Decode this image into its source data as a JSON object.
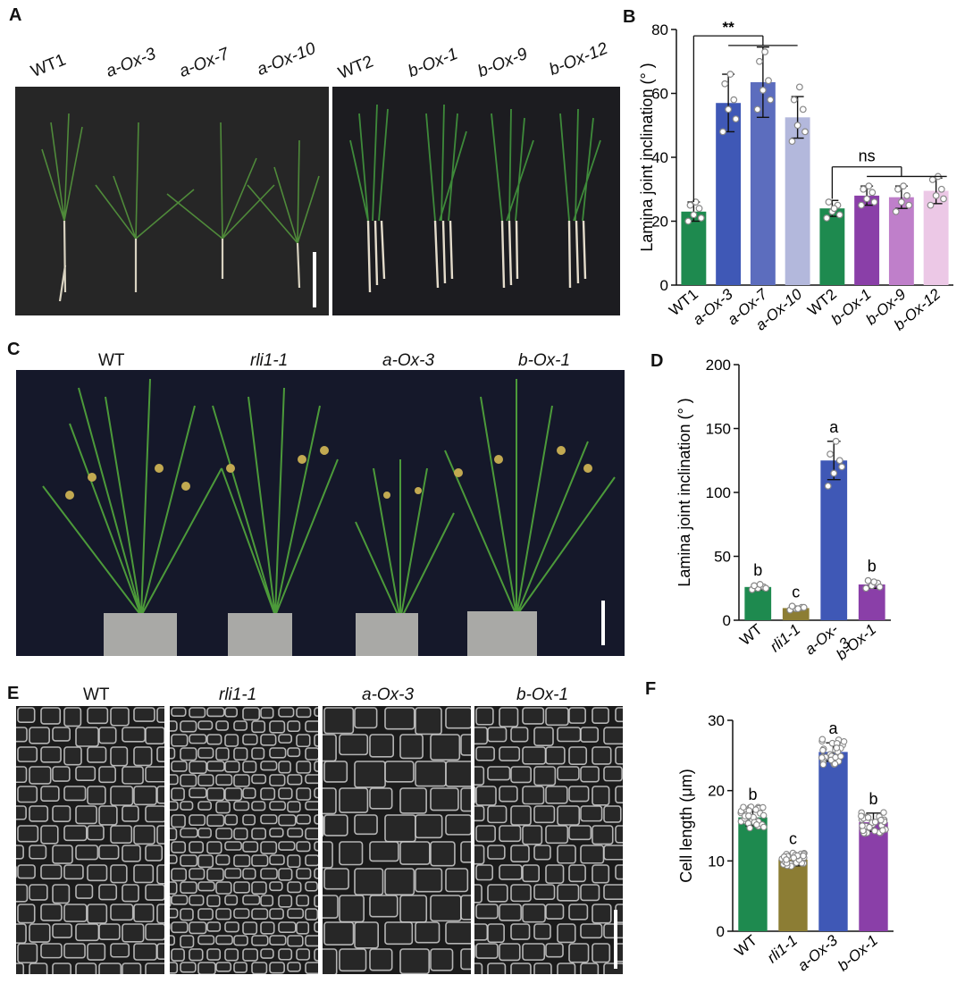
{
  "panels": [
    "A",
    "B",
    "C",
    "D",
    "E",
    "F"
  ],
  "panelA": {
    "labels": [
      "WT1",
      "a-Ox-3",
      "a-Ox-7",
      "a-Ox-10",
      "WT2",
      "b-Ox-1",
      "b-Ox-9",
      "b-Ox-12"
    ]
  },
  "panelC": {
    "labels": [
      "WT",
      "rli1-1",
      "a-Ox-3",
      "b-Ox-1"
    ]
  },
  "panelE": {
    "labels": [
      "WT",
      "rli1-1",
      "a-Ox-3",
      "b-Ox-1"
    ]
  },
  "chart_data": [
    {
      "id": "B",
      "type": "bar",
      "ylabel": "Lamina joint inclination (°  )",
      "ylim": [
        0,
        80
      ],
      "yticks": [
        0,
        20,
        40,
        60,
        80
      ],
      "categories": [
        "WT1",
        "a-Ox-3",
        "a-Ox-7",
        "a-Ox-10",
        "WT2",
        "b-Ox-1",
        "b-Ox-9",
        "b-Ox-12"
      ],
      "values": [
        23,
        57,
        63.5,
        52.5,
        24,
        28,
        27.5,
        29.5
      ],
      "errors": [
        3,
        9,
        11,
        6.5,
        2.5,
        3,
        3.5,
        4
      ],
      "colors": [
        "#1e8a4f",
        "#3f58b6",
        "#5c6dbe",
        "#b3b8dc",
        "#1e8a4f",
        "#8a3fa8",
        "#bf7fca",
        "#ecc8e6"
      ],
      "points": [
        [
          20,
          22,
          24,
          25,
          26,
          21
        ],
        [
          48,
          55,
          58,
          63,
          66,
          52
        ],
        [
          55,
          61,
          64,
          70,
          73,
          58
        ],
        [
          45,
          50,
          55,
          58,
          62,
          48
        ],
        [
          21,
          23,
          25,
          26,
          24,
          22
        ],
        [
          25,
          27,
          29,
          30,
          31,
          26
        ],
        [
          23,
          26,
          28,
          30,
          31,
          25
        ],
        [
          25,
          28,
          30,
          33,
          34,
          27
        ]
      ],
      "annotations": [
        "**",
        "ns"
      ]
    },
    {
      "id": "D",
      "type": "bar",
      "ylabel": "Lamina joint inclination (°  )",
      "ylim": [
        0,
        200
      ],
      "yticks": [
        0,
        50,
        100,
        150,
        200
      ],
      "categories": [
        "WT",
        "rli1-1",
        "a-Ox-3",
        "b-Ox-1"
      ],
      "tick_labels": [
        "WT",
        "rli1-1",
        "a-Ox-\n3",
        "b-Ox-1"
      ],
      "values": [
        26,
        9.5,
        125,
        28
      ],
      "errors": [
        2,
        1.5,
        15,
        3
      ],
      "colors": [
        "#1e8a4f",
        "#8c7d34",
        "#3f58b6",
        "#8a3fa8"
      ],
      "points": [
        [
          24,
          25,
          26,
          27,
          28,
          25
        ],
        [
          8,
          9,
          10,
          11,
          9,
          10
        ],
        [
          105,
          115,
          125,
          130,
          140,
          120
        ],
        [
          25,
          27,
          29,
          31,
          30,
          26
        ]
      ],
      "letters": [
        "b",
        "c",
        "a",
        "b"
      ]
    },
    {
      "id": "F",
      "type": "bar",
      "ylabel": "Cell length (μm)",
      "ylim": [
        0,
        30
      ],
      "yticks": [
        0,
        10,
        20,
        30
      ],
      "categories": [
        "WT",
        "rli1-1",
        "a-Ox-3",
        "b-Ox-1"
      ],
      "values": [
        16.2,
        10.2,
        25.5,
        15.5
      ],
      "errors": [
        1.2,
        0.9,
        1.3,
        1.3
      ],
      "colors": [
        "#1e8a4f",
        "#8c7d34",
        "#3f58b6",
        "#8a3fa8"
      ],
      "spread": [
        1.6,
        1.0,
        1.8,
        1.7
      ],
      "letters": [
        "b",
        "c",
        "a",
        "b"
      ]
    }
  ]
}
